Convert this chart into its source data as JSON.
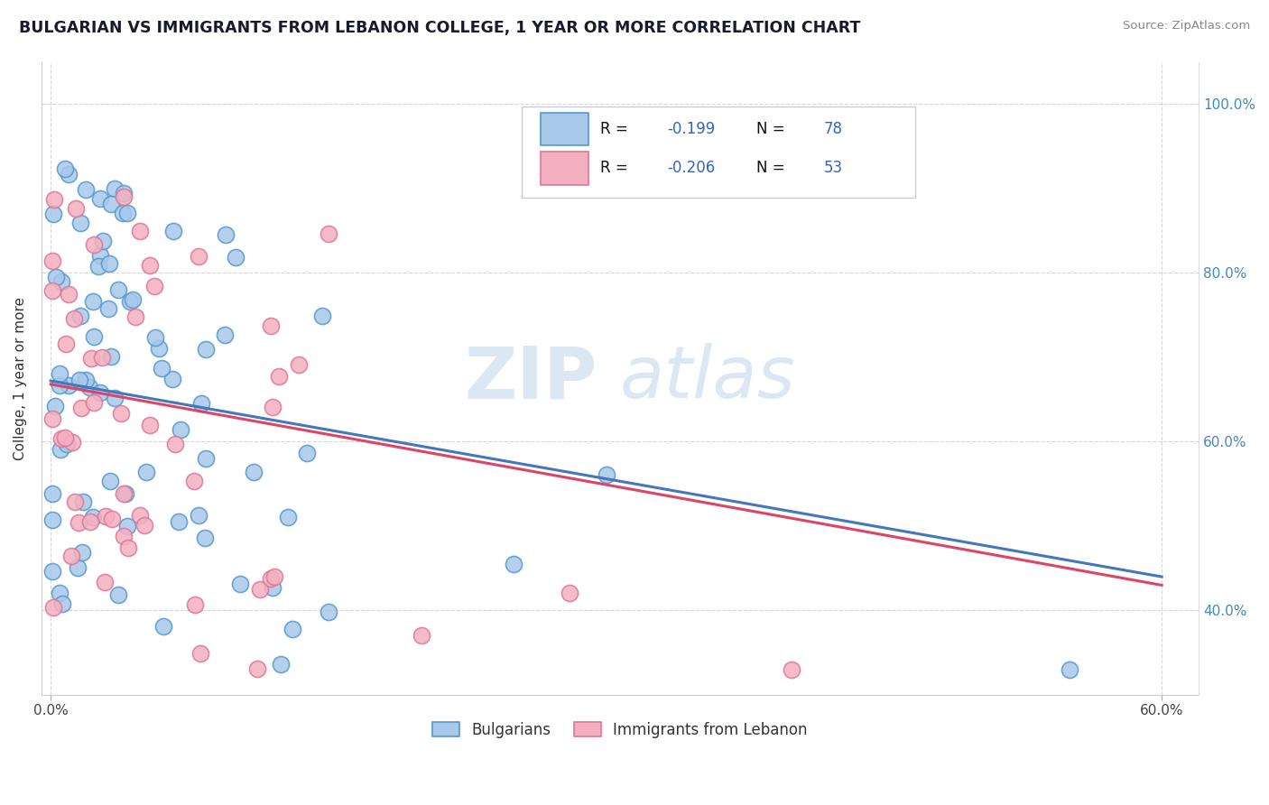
{
  "title": "BULGARIAN VS IMMIGRANTS FROM LEBANON COLLEGE, 1 YEAR OR MORE CORRELATION CHART",
  "source": "Source: ZipAtlas.com",
  "ylabel": "College, 1 year or more",
  "xlim": [
    -0.005,
    0.62
  ],
  "ylim": [
    0.3,
    1.05
  ],
  "xticks": [
    0.0,
    0.6
  ],
  "xticklabels": [
    "0.0%",
    "60.0%"
  ],
  "yticks": [
    0.4,
    0.6,
    0.8,
    1.0
  ],
  "yticklabels": [
    "40.0%",
    "60.0%",
    "80.0%",
    "100.0%"
  ],
  "blue_fill": "#a8c8ea",
  "blue_edge": "#5599cc",
  "pink_fill": "#f4b0c0",
  "pink_edge": "#dd7799",
  "blue_line_color": "#4477bb",
  "pink_line_color": "#dd4466",
  "legend_blue_R": "-0.199",
  "legend_blue_N": "78",
  "legend_pink_R": "-0.206",
  "legend_pink_N": "53",
  "legend_label_blue": "Bulgarians",
  "legend_label_pink": "Immigrants from Lebanon",
  "watermark_zip": "ZIP",
  "watermark_atlas": "atlas",
  "blue_line_x0": 0.0,
  "blue_line_x1": 0.6,
  "blue_line_y0": 0.672,
  "blue_line_y1": 0.44,
  "pink_line_x0": 0.0,
  "pink_line_x1": 0.6,
  "pink_line_y0": 0.668,
  "pink_line_y1": 0.43,
  "tick_color": "#4488bb",
  "ylabel_color": "#333333",
  "title_color": "#1a1a2e",
  "source_color": "#888888",
  "grid_color": "#cccccc"
}
